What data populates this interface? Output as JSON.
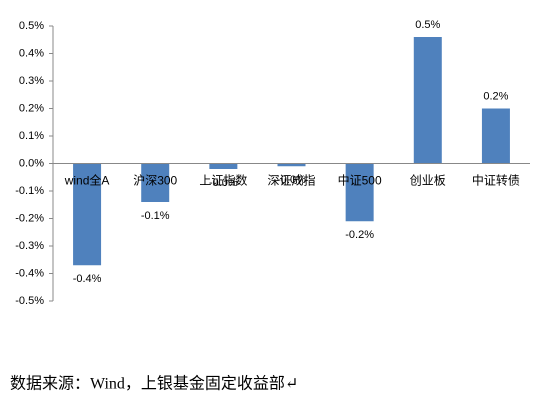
{
  "chart_data": {
    "type": "bar",
    "categories": [
      "wind全A",
      "沪深300",
      "上证指数",
      "深证成指",
      "中证500",
      "创业板",
      "中证转债"
    ],
    "values": [
      -0.37,
      -0.14,
      -0.02,
      -0.01,
      -0.21,
      0.46,
      0.2
    ],
    "value_labels": [
      "-0.4%",
      "-0.1%",
      "-0.0%",
      "-0.0%",
      "-0.2%",
      "0.5%",
      "0.2%"
    ],
    "color": "#4f81bd",
    "ylim": [
      -0.5,
      0.5
    ],
    "yticks": [
      {
        "value": -0.5,
        "label": "-0.5%"
      },
      {
        "value": -0.4,
        "label": "-0.4%"
      },
      {
        "value": -0.3,
        "label": "-0.3%"
      },
      {
        "value": -0.2,
        "label": "-0.2%"
      },
      {
        "value": -0.1,
        "label": "-0.1%"
      },
      {
        "value": 0,
        "label": "0.0%"
      },
      {
        "value": 0.1,
        "label": "0.1%"
      },
      {
        "value": 0.2,
        "label": "0.2%"
      },
      {
        "value": 0.3,
        "label": "0.3%"
      },
      {
        "value": 0.4,
        "label": "0.4%"
      },
      {
        "value": 0.5,
        "label": "0.5%"
      }
    ],
    "grid": false,
    "source": "数据来源：Wind，上银基金固定收益部↵"
  }
}
